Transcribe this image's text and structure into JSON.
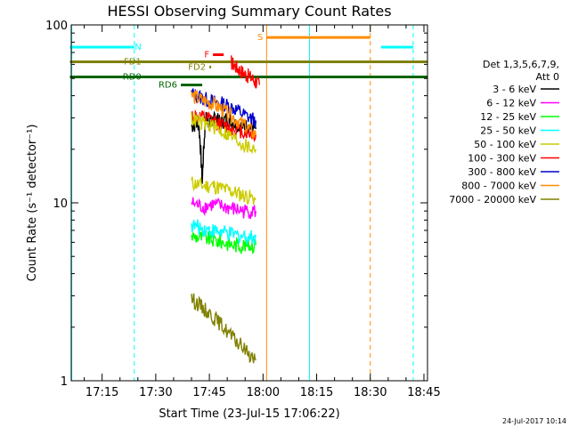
{
  "chart_data": {
    "type": "line",
    "title": "HESSI Observing Summary Count Rates",
    "xlabel": "Start Time (23-Jul-15 17:06:22)",
    "ylabel": "Count Rate (s⁻¹ detector⁻¹)",
    "y_scale": "log",
    "ylim": [
      1,
      100
    ],
    "xlim": [
      "17:06:22",
      "18:46:00"
    ],
    "y_ticks": [
      "1",
      "10",
      "100"
    ],
    "x_ticks": [
      "17:15",
      "17:30",
      "17:45",
      "18:00",
      "18:15",
      "18:30",
      "18:45"
    ],
    "legend_header": [
      "Det 1,3,5,6,7,9,",
      "Att 0"
    ],
    "legend": [
      {
        "name": "3 - 6 keV",
        "color": "#000000"
      },
      {
        "name": "6 - 12 keV",
        "color": "#ff00ff"
      },
      {
        "name": "12 - 25 keV",
        "color": "#00ff00"
      },
      {
        "name": "25 - 50 keV",
        "color": "#00ffff"
      },
      {
        "name": "50 - 100 keV",
        "color": "#cccc00"
      },
      {
        "name": "100 - 300 keV",
        "color": "#ff0000"
      },
      {
        "name": "300 - 800 keV",
        "color": "#0000cc"
      },
      {
        "name": "800 - 7000 keV",
        "color": "#ff8c00"
      },
      {
        "name": "7000 - 20000 keV",
        "color": "#808000"
      }
    ],
    "series": [
      {
        "name": "3 - 6 keV",
        "color": "#000000",
        "x": [
          "17:40",
          "17:42",
          "17:43",
          "17:44",
          "17:45",
          "17:46",
          "17:47",
          "17:48",
          "17:50",
          "17:52",
          "17:54",
          "17:56",
          "17:58"
        ],
        "y": [
          27,
          28,
          13,
          30,
          28,
          29,
          30,
          28,
          30,
          28,
          27,
          27,
          26
        ]
      },
      {
        "name": "6 - 12 keV",
        "color": "#ff00ff",
        "x": [
          "17:40",
          "17:43",
          "17:46",
          "17:49",
          "17:52",
          "17:55",
          "17:58"
        ],
        "y": [
          10,
          9.5,
          9.8,
          9.5,
          9.2,
          9.0,
          9.0
        ]
      },
      {
        "name": "12 - 25 keV",
        "color": "#00ff00",
        "x": [
          "17:40",
          "17:43",
          "17:46",
          "17:49",
          "17:52",
          "17:55",
          "17:58"
        ],
        "y": [
          6.5,
          6.4,
          6.2,
          6.0,
          5.8,
          5.8,
          5.8
        ]
      },
      {
        "name": "25 - 50 keV",
        "color": "#00ffff",
        "x": [
          "17:40",
          "17:43",
          "17:46",
          "17:49",
          "17:52",
          "17:55",
          "17:58"
        ],
        "y": [
          7.5,
          7.2,
          7.0,
          6.8,
          6.6,
          6.5,
          6.4
        ]
      },
      {
        "name": "50 - 100 keV",
        "color": "#cccc00",
        "x": [
          "17:40",
          "17:43",
          "17:46",
          "17:49",
          "17:52",
          "17:55",
          "17:58"
        ],
        "y": [
          13,
          12.5,
          12.5,
          12,
          11.5,
          11,
          10.5
        ]
      },
      {
        "name": "100 - 300 keV",
        "color": "#ff0000",
        "x": [
          "17:40",
          "17:43",
          "17:46",
          "17:49",
          "17:52",
          "17:55",
          "17:58"
        ],
        "y": [
          31,
          30,
          29,
          27,
          26,
          25,
          24
        ]
      },
      {
        "name": "300 - 800 keV",
        "color": "#0000cc",
        "x": [
          "17:40",
          "17:43",
          "17:46",
          "17:49",
          "17:52",
          "17:55",
          "17:58"
        ],
        "y": [
          41,
          39,
          37,
          36,
          34,
          31,
          29
        ]
      },
      {
        "name": "800 - 7000 keV",
        "color": "#ff8c00",
        "x": [
          "17:40",
          "17:43",
          "17:46",
          "17:49",
          "17:52",
          "17:55",
          "17:58"
        ],
        "y": [
          40,
          38,
          36,
          33,
          30,
          27,
          24
        ]
      },
      {
        "name": "7000 - 20000 keV",
        "color": "#808000",
        "x": [
          "17:40",
          "17:43",
          "17:46",
          "17:49",
          "17:52",
          "17:55",
          "17:58"
        ],
        "y": [
          2.9,
          2.6,
          2.3,
          2.0,
          1.7,
          1.5,
          1.3
        ]
      },
      {
        "name": "",
        "color": "#cccc00",
        "x": [
          "17:40",
          "17:43",
          "17:46",
          "17:49",
          "17:52",
          "17:55",
          "17:58"
        ],
        "y": [
          30,
          28,
          27,
          25,
          23,
          21,
          20
        ]
      },
      {
        "name": "",
        "color": "#ff0000",
        "x": [
          "17:51",
          "17:53",
          "17:55",
          "17:57",
          "17:59"
        ],
        "y": [
          62,
          57,
          53,
          50,
          46
        ]
      }
    ],
    "intervals": [
      {
        "label": "N",
        "color": "#00ffff",
        "y": 75,
        "x0": "17:06",
        "x1": "17:24"
      },
      {
        "label": "",
        "color": "#00ffff",
        "y": 75,
        "x0": "18:33",
        "x1": "18:42"
      },
      {
        "label": "S",
        "color": "#ff8c00",
        "y": 85,
        "x0": "18:01",
        "x1": "18:30"
      },
      {
        "label": "F",
        "color": "#ff0000",
        "y": 68,
        "x0": "17:46",
        "x1": "17:49"
      },
      {
        "label": "FD1",
        "color": "#808000",
        "y": 62,
        "x0": "17:06",
        "x1": "18:46"
      },
      {
        "label": "FD2",
        "color": "#808000",
        "y": 58,
        "x0": "17:45",
        "x1": "17:45"
      },
      {
        "label": "RD0",
        "color": "#006400",
        "y": 51,
        "x0": "17:06",
        "x1": "18:46"
      },
      {
        "label": "RD6",
        "color": "#006400",
        "y": 46,
        "x0": "17:37",
        "x1": "17:43"
      }
    ],
    "vlines": [
      {
        "x": "17:06:30",
        "color": "#00ffff",
        "style": "solid"
      },
      {
        "x": "17:24",
        "color": "#00ffff",
        "style": "dashed"
      },
      {
        "x": "18:01",
        "color": "#ff8c00",
        "style": "solid"
      },
      {
        "x": "18:13",
        "color": "#00ffff",
        "style": "solid"
      },
      {
        "x": "18:30",
        "color": "#ff8c00",
        "style": "dashed"
      },
      {
        "x": "18:42",
        "color": "#00ffff",
        "style": "dashed"
      }
    ]
  },
  "footer": {
    "stamp": "24-Jul-2017 10:14"
  }
}
